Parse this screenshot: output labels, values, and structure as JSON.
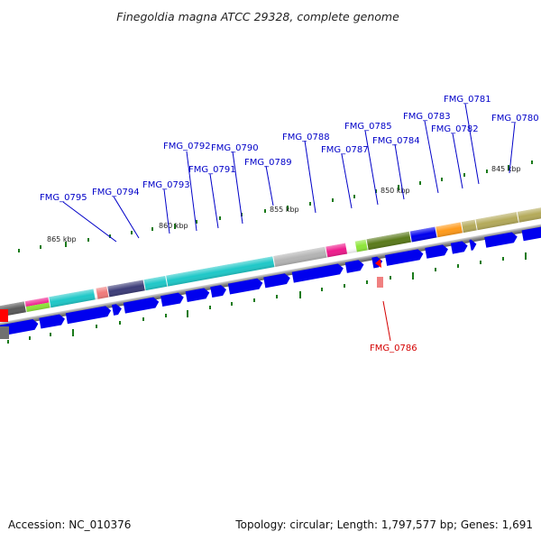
{
  "title": "Finegoldia magna ATCC 29328, complete genome",
  "footer": {
    "accession": "Accession: NC_010376",
    "summary": "Topology: circular; Length: 1,797,577 bp; Genes: 1,691"
  },
  "kbp_labels": [
    "865 kbp",
    "860 kbp",
    "855 kbp",
    "850 kbp",
    "845 kbp"
  ],
  "gene_labels": [
    {
      "id": "FMG_0795",
      "color": "#0000c8"
    },
    {
      "id": "FMG_0794",
      "color": "#0000c8"
    },
    {
      "id": "FMG_0793",
      "color": "#0000c8"
    },
    {
      "id": "FMG_0792",
      "color": "#0000c8"
    },
    {
      "id": "FMG_0791",
      "color": "#0000c8"
    },
    {
      "id": "FMG_0790",
      "color": "#0000c8"
    },
    {
      "id": "FMG_0789",
      "color": "#0000c8"
    },
    {
      "id": "FMG_0788",
      "color": "#0000c8"
    },
    {
      "id": "FMG_0787",
      "color": "#0000c8"
    },
    {
      "id": "FMG_0785",
      "color": "#0000c8"
    },
    {
      "id": "FMG_0784",
      "color": "#0000c8"
    },
    {
      "id": "FMG_0783",
      "color": "#0000c8"
    },
    {
      "id": "FMG_0782",
      "color": "#0000c8"
    },
    {
      "id": "FMG_0781",
      "color": "#0000c8"
    },
    {
      "id": "FMG_0780",
      "color": "#0000c8"
    },
    {
      "id": "FMG_0786",
      "color": "#d40000"
    }
  ],
  "colors": {
    "forward_gene": "#0000ee",
    "reverse_gene": "#ff0000",
    "backbone": "#808080",
    "tick": "#1a7a1a",
    "cog_dark_gray": "#5a5a5a",
    "cog_magenta": "#ee1b8c",
    "cog_lime": "#8ee63a",
    "cog_cyan": "#1fc8c8",
    "cog_salmon": "#f07a7a",
    "cog_dark_slate": "#3c3c78",
    "cog_silver": "#b4b4b4",
    "cog_olive": "#5a7a1a",
    "cog_orange": "#ff9a1a",
    "cog_khaki": "#b4aa5a"
  }
}
